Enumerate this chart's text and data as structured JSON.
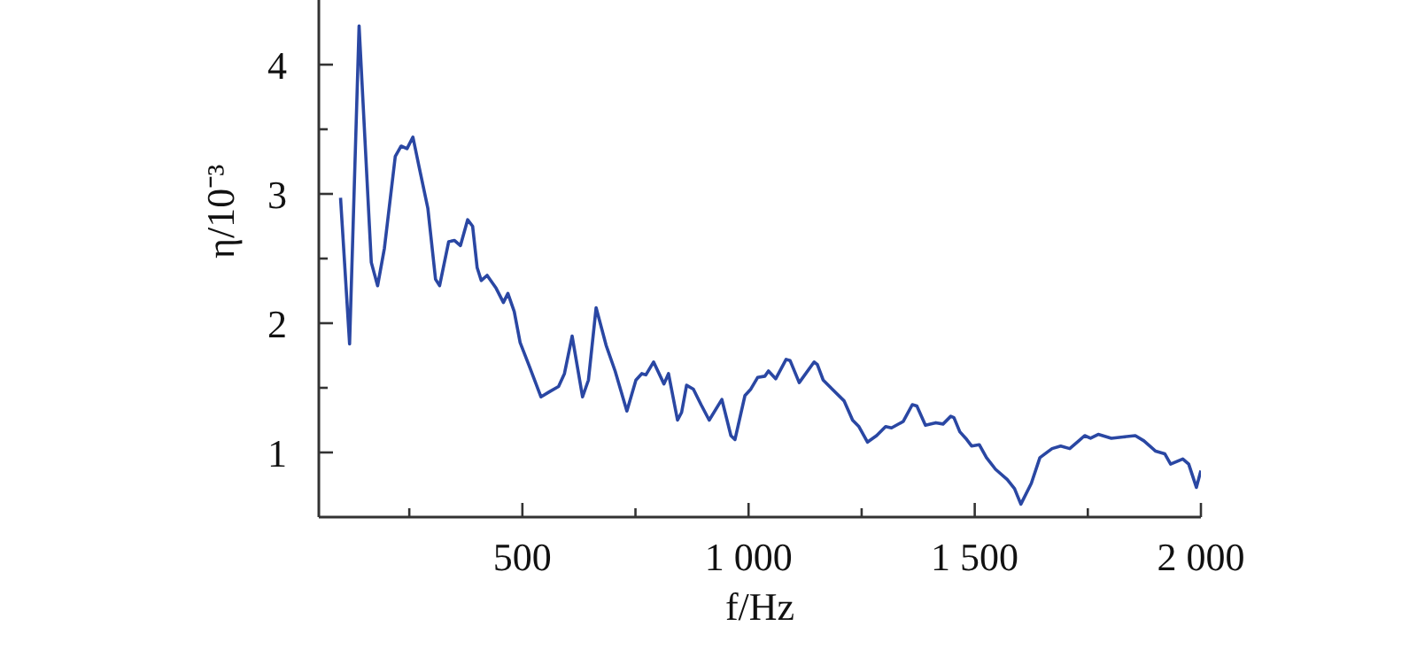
{
  "chart_data": {
    "type": "line",
    "xlabel": "f/Hz",
    "ylabel": "η/10⁻³",
    "x": [
      98,
      118,
      139,
      166,
      180,
      195,
      219,
      232,
      245,
      258,
      271,
      291,
      308,
      317,
      337,
      350,
      363,
      379,
      390,
      400,
      409,
      422,
      442,
      458,
      468,
      482,
      495,
      515,
      541,
      560,
      580,
      593,
      610,
      633,
      646,
      663,
      685,
      705,
      731,
      751,
      764,
      773,
      790,
      813,
      823,
      843,
      852,
      863,
      878,
      895,
      913,
      941,
      961,
      970,
      992,
      1005,
      1020,
      1036,
      1044,
      1060,
      1083,
      1092,
      1112,
      1145,
      1152,
      1165,
      1185,
      1211,
      1230,
      1244,
      1263,
      1283,
      1303,
      1316,
      1342,
      1362,
      1372,
      1391,
      1414,
      1430,
      1447,
      1454,
      1467,
      1480,
      1493,
      1510,
      1526,
      1546,
      1572,
      1588,
      1602,
      1625,
      1644,
      1671,
      1690,
      1710,
      1730,
      1743,
      1756,
      1773,
      1802,
      1828,
      1855,
      1874,
      1900,
      1920,
      1933,
      1960,
      1973,
      1990,
      2000
    ],
    "series": [
      {
        "color": "#2a47a3",
        "values": [
          2.97,
          1.84,
          4.3,
          2.47,
          2.29,
          2.58,
          3.29,
          3.37,
          3.35,
          3.44,
          3.22,
          2.89,
          2.34,
          2.29,
          2.63,
          2.64,
          2.6,
          2.8,
          2.75,
          2.43,
          2.33,
          2.37,
          2.27,
          2.16,
          2.23,
          2.09,
          1.85,
          1.67,
          1.43,
          1.47,
          1.51,
          1.61,
          1.9,
          1.43,
          1.56,
          2.12,
          1.83,
          1.63,
          1.32,
          1.56,
          1.61,
          1.6,
          1.7,
          1.53,
          1.61,
          1.25,
          1.31,
          1.52,
          1.49,
          1.37,
          1.25,
          1.41,
          1.13,
          1.1,
          1.44,
          1.49,
          1.58,
          1.59,
          1.63,
          1.57,
          1.72,
          1.71,
          1.54,
          1.7,
          1.68,
          1.56,
          1.49,
          1.4,
          1.25,
          1.2,
          1.08,
          1.13,
          1.2,
          1.19,
          1.24,
          1.37,
          1.36,
          1.21,
          1.23,
          1.22,
          1.28,
          1.27,
          1.16,
          1.11,
          1.05,
          1.06,
          0.96,
          0.87,
          0.79,
          0.72,
          0.6,
          0.76,
          0.96,
          1.03,
          1.05,
          1.03,
          1.09,
          1.13,
          1.11,
          1.14,
          1.11,
          1.12,
          1.13,
          1.09,
          1.01,
          0.99,
          0.91,
          0.95,
          0.91,
          0.73,
          0.86
        ]
      }
    ],
    "xlim": [
      50,
      2000
    ],
    "xticks": [
      {
        "value": 250,
        "label": null
      },
      500,
      {
        "value": 750,
        "label": null
      },
      {
        "value": 1000,
        "label": "1 000"
      },
      {
        "value": 1250,
        "label": null
      },
      {
        "value": 1500,
        "label": "1 500"
      },
      {
        "value": 1750,
        "label": null
      },
      {
        "value": 2000,
        "label": "2 000"
      }
    ],
    "ylim": [
      0.5,
      4.5
    ],
    "yticks": [
      1,
      {
        "value": 1.5,
        "label": null
      },
      2,
      {
        "value": 2.5,
        "label": null
      },
      3,
      {
        "value": 3.5,
        "label": null
      },
      4
    ],
    "grid": false,
    "legend": false,
    "marker": "none",
    "line_style": "solid"
  }
}
